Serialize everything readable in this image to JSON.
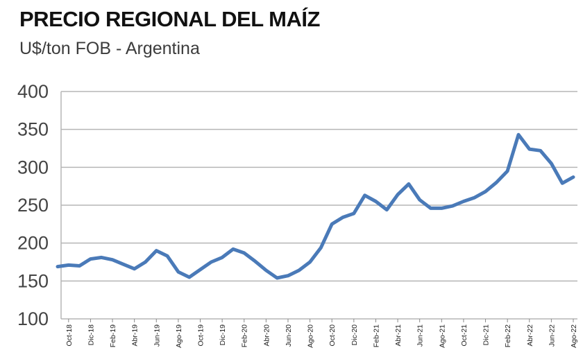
{
  "chart_data": {
    "type": "line",
    "title": "PRECIO REGIONAL DEL MAÍZ",
    "subtitle": "U$/ton FOB - Argentina",
    "xlabel": "",
    "ylabel": "",
    "ylim": [
      100,
      400
    ],
    "yticks": [
      100,
      150,
      200,
      250,
      300,
      350,
      400
    ],
    "grid": true,
    "line_color": "#4a7ab8",
    "grid_color": "#b5b5b5",
    "x_tick_labels": [
      "Oct-18",
      "Dic-18",
      "Feb-19",
      "Abr-19",
      "Jun-19",
      "Ago-19",
      "Oct-19",
      "Dic-19",
      "Feb-20",
      "Abr-20",
      "Jun-20",
      "Ago-20",
      "Oct-20",
      "Dic-20",
      "Feb-21",
      "Abr-21",
      "Jun-21",
      "Ago-21",
      "Oct-21",
      "Dic-21",
      "Feb-22",
      "Abr-22",
      "Jun-22",
      "Ago-22"
    ],
    "series": [
      {
        "x": [
          "Sep-18",
          "Oct-18",
          "Nov-18",
          "Dic-18",
          "Ene-19",
          "Feb-19",
          "Mar-19",
          "Abr-19",
          "May-19",
          "Jun-19",
          "Jul-19",
          "Ago-19",
          "Sep-19",
          "Oct-19",
          "Nov-19",
          "Dic-19",
          "Ene-20",
          "Feb-20",
          "Mar-20",
          "Abr-20",
          "May-20",
          "Jun-20",
          "Jul-20",
          "Ago-20",
          "Sep-20",
          "Oct-20",
          "Nov-20",
          "Dic-20",
          "Ene-21",
          "Feb-21",
          "Mar-21",
          "Abr-21",
          "May-21",
          "Jun-21",
          "Jul-21",
          "Ago-21",
          "Sep-21",
          "Oct-21",
          "Nov-21",
          "Dic-21",
          "Ene-22",
          "Feb-22",
          "Mar-22",
          "Abr-22",
          "May-22",
          "Jun-22",
          "Jul-22",
          "Ago-22"
        ],
        "values": [
          169,
          171,
          170,
          179,
          181,
          178,
          172,
          166,
          175,
          190,
          183,
          162,
          155,
          165,
          175,
          181,
          192,
          187,
          176,
          164,
          154,
          157,
          164,
          175,
          194,
          225,
          234,
          239,
          263,
          255,
          244,
          264,
          278,
          257,
          246,
          246,
          249,
          255,
          260,
          268,
          280,
          295,
          343,
          324,
          322,
          305,
          279,
          287
        ]
      }
    ]
  }
}
